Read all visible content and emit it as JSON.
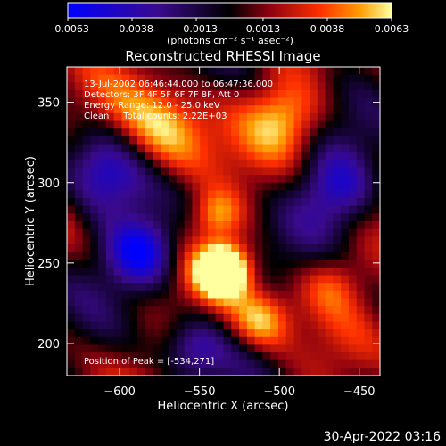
{
  "chart_data": {
    "type": "heatmap",
    "title": "Reconstructed RHESSI Image",
    "xlabel": "Heliocentric X (arcsec)",
    "ylabel": "Heliocentric Y (arcsec)",
    "xlim": [
      -633,
      -437
    ],
    "ylim": [
      180,
      372
    ],
    "x_ticks": [
      -600,
      -550,
      -500,
      -450
    ],
    "x_tick_labels": [
      "−600",
      "−550",
      "−500",
      "−450"
    ],
    "y_ticks": [
      200,
      250,
      300,
      350
    ],
    "y_tick_labels": [
      "200",
      "250",
      "300",
      "350"
    ],
    "colorbar": {
      "range": [
        -0.0063,
        0.0063
      ],
      "ticks": [
        -0.0063,
        -0.0038,
        -0.0013,
        0.0013,
        0.0038,
        0.0063
      ],
      "tick_labels": [
        "−0.0063",
        "−0.0038",
        "−0.0013",
        "0.0013",
        "0.0038",
        "0.0063"
      ],
      "unit_label": "(photons cm⁻² s⁻¹ asec⁻²)",
      "colors": [
        "#0000ff",
        "#3a0a8c",
        "#000000",
        "#8a0010",
        "#ff3000",
        "#ff9a00",
        "#ffffa0"
      ]
    },
    "annotations": {
      "time_range": "13-Jul-2002 06:46:44.000 to 06:47:36.000",
      "detectors": "Detectors: 3F 4F 5F 6F 7F 8F, Att 0",
      "energy_range": "Energy Range: 12.0 - 25.0 keV",
      "clean_counts": "Clean     Total counts: 2.22E+03",
      "peak_position": "Position of Peak = [-534,271]"
    },
    "peak": {
      "x": -534,
      "y": 271
    },
    "grid": false
  },
  "footer": {
    "timestamp": "30-Apr-2022 03:16"
  }
}
